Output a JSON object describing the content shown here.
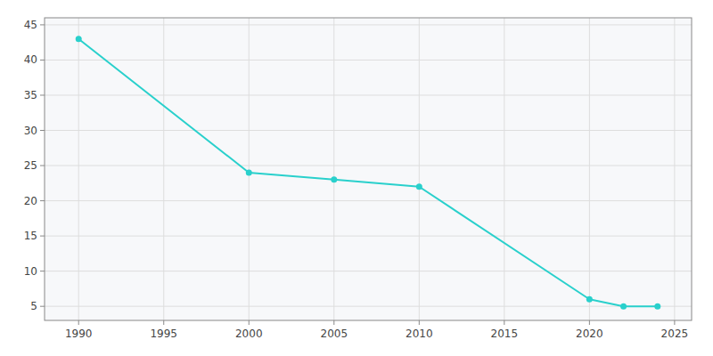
{
  "chart_data": {
    "type": "line",
    "x": [
      1990,
      2000,
      2005,
      2010,
      2020,
      2022,
      2024
    ],
    "values": [
      43,
      24,
      23,
      22,
      6,
      5,
      5
    ],
    "color": "#29d0cc",
    "marker": "circle",
    "xlim": [
      1988,
      2026
    ],
    "ylim": [
      3,
      46
    ],
    "xticks": [
      1990,
      1995,
      2000,
      2005,
      2010,
      2015,
      2020,
      2025
    ],
    "yticks": [
      5,
      10,
      15,
      20,
      25,
      30,
      35,
      40,
      45
    ],
    "grid": true
  }
}
